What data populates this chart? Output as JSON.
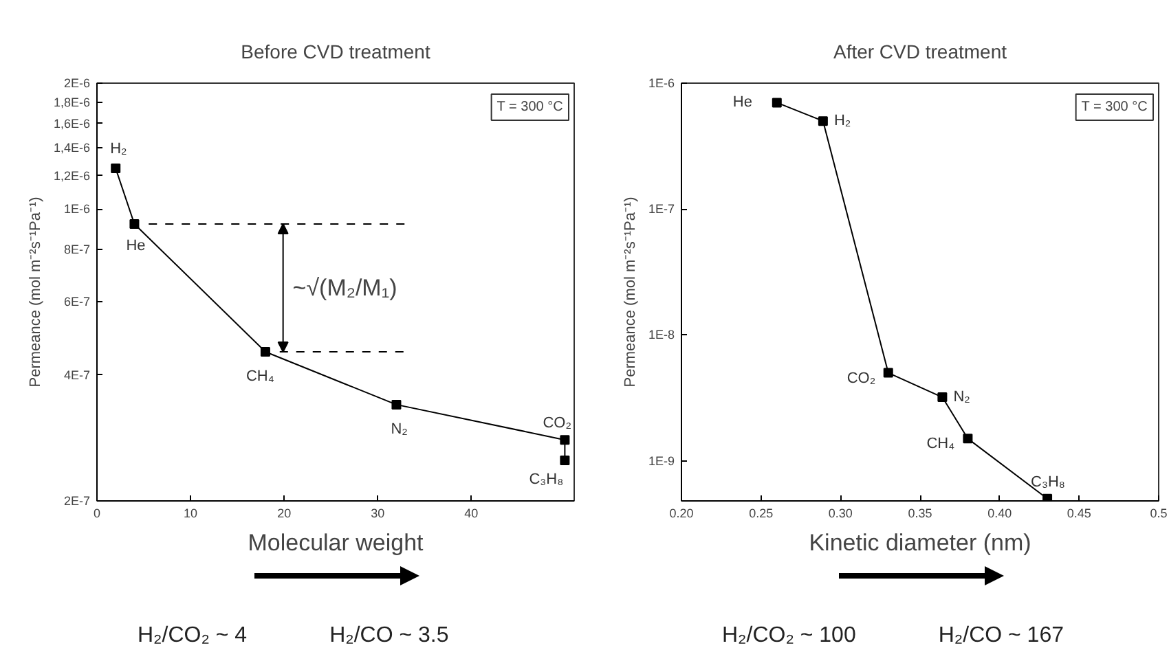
{
  "chart_data": [
    {
      "type": "line",
      "title": "Before CVD treatment",
      "xlabel": "Molecular weight",
      "ylabel": "Permeance (mol m⁻²s⁻¹Pa⁻¹)",
      "log": "y",
      "grid": false,
      "marker": "square",
      "line_style": "solid",
      "xlim": [
        0,
        51
      ],
      "xticks": [
        0,
        10,
        20,
        30,
        40
      ],
      "ylim": [
        2e-07,
        2e-06
      ],
      "yticks": [
        {
          "value": 2e-07,
          "label": "2E-7"
        },
        {
          "value": 4e-07,
          "label": "4E-7"
        },
        {
          "value": 6e-07,
          "label": "6E-7"
        },
        {
          "value": 8e-07,
          "label": "8E-7"
        },
        {
          "value": 1e-06,
          "label": "1E-6"
        },
        {
          "value": 1.2e-06,
          "label": "1,2E-6"
        },
        {
          "value": 1.4e-06,
          "label": "1,4E-6"
        },
        {
          "value": 1.6e-06,
          "label": "1,6E-6"
        },
        {
          "value": 1.8e-06,
          "label": "1,8E-6"
        },
        {
          "value": 2e-06,
          "label": "2E-6"
        }
      ],
      "series": [
        {
          "color": "#000000",
          "x": [
            2,
            4,
            18,
            32,
            50,
            50
          ],
          "values": [
            1.25e-06,
            9.2e-07,
            4.55e-07,
            3.4e-07,
            2.8e-07,
            2.5e-07
          ]
        }
      ],
      "ref_lines": [
        {
          "axis": "y",
          "value": 9.2e-07,
          "line_style": "dashed",
          "label": "~√(M₂/M₁)"
        },
        {
          "axis": "y",
          "value": 4.55e-07,
          "line_style": "dashed"
        }
      ],
      "annotations": [
        {
          "text": "H₂",
          "x": 2,
          "y": 1.25e-06
        },
        {
          "text": "He",
          "x": 4,
          "y": 9.2e-07
        },
        {
          "text": "CH₄",
          "x": 18,
          "y": 4.55e-07
        },
        {
          "text": "N₂",
          "x": 32,
          "y": 3.4e-07
        },
        {
          "text": "CO₂",
          "x": 50,
          "y": 2.8e-07
        },
        {
          "text": "C₃H₈",
          "x": 50,
          "y": 2.5e-07
        },
        "T = 300 °C",
        "H₂/CO₂ ~ 4",
        "H₂/CO ~ 3.5"
      ]
    },
    {
      "type": "line",
      "title": "After CVD treatment",
      "xlabel": "Kinetic diameter (nm)",
      "ylabel": "Permeance (mol m⁻²s⁻¹Pa⁻¹)",
      "log": "y",
      "grid": false,
      "marker": "square",
      "line_style": "solid",
      "xlim": [
        0.2,
        0.5
      ],
      "xticks": [
        {
          "value": 0.2,
          "label": "0.20"
        },
        {
          "value": 0.25,
          "label": "0.25"
        },
        {
          "value": 0.3,
          "label": "0.30"
        },
        {
          "value": 0.35,
          "label": "0.35"
        },
        {
          "value": 0.4,
          "label": "0.40"
        },
        {
          "value": 0.45,
          "label": "0.45"
        },
        0.5
      ],
      "ylim": [
        4.8e-10,
        1e-06
      ],
      "yticks": [
        {
          "value": 1e-09,
          "label": "1E-9"
        },
        {
          "value": 1e-08,
          "label": "1E-8"
        },
        {
          "value": 1e-07,
          "label": "1E-7"
        },
        {
          "value": 1e-06,
          "label": "1E-6"
        }
      ],
      "series": [
        {
          "color": "#000000",
          "x": [
            0.26,
            0.289,
            0.33,
            0.364,
            0.38,
            0.43
          ],
          "values": [
            7e-07,
            5e-07,
            5e-09,
            3.2e-09,
            1.5e-09,
            5e-10
          ]
        }
      ],
      "annotations": [
        {
          "text": "He",
          "x": 0.26,
          "y": 7e-07
        },
        {
          "text": "H₂",
          "x": 0.289,
          "y": 5e-07
        },
        {
          "text": "CO₂",
          "x": 0.33,
          "y": 5e-09
        },
        {
          "text": "N₂",
          "x": 0.364,
          "y": 3.2e-09
        },
        {
          "text": "CH₄",
          "x": 0.38,
          "y": 1.5e-09
        },
        {
          "text": "C₃H₈",
          "x": 0.43,
          "y": 5e-10
        },
        "T = 300 °C",
        "H₂/CO₂ ~ 100",
        "H₂/CO ~ 167"
      ]
    }
  ]
}
